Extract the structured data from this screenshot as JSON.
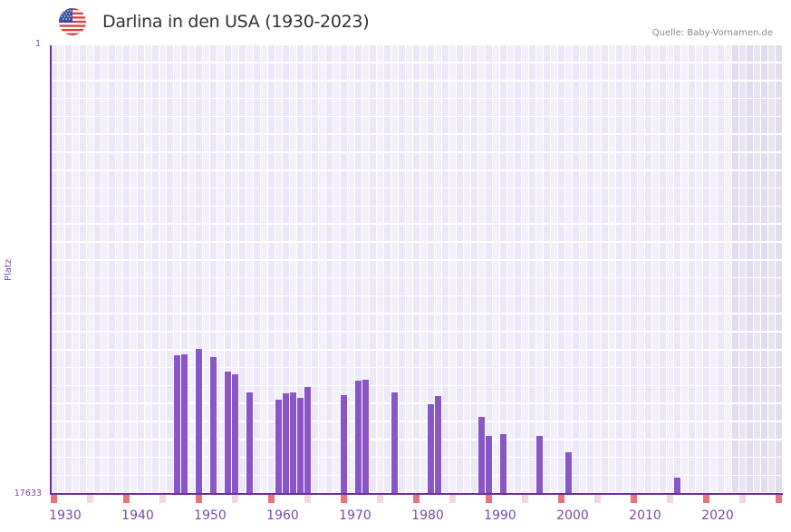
{
  "header": {
    "title": "Darlina in den USA (1930-2023)",
    "source": "Quelle: Baby-Vornamen.de",
    "flag_icon": "us-flag-icon"
  },
  "axes": {
    "y_top_label": "1",
    "y_bottom_label": "17633",
    "y_title": "Platz",
    "x_labels": [
      "1930",
      "1940",
      "1950",
      "1960",
      "1970",
      "1980",
      "1990",
      "2000",
      "2010",
      "2020"
    ]
  },
  "colors": {
    "bar": "#8a55c6",
    "axis": "#6a2d9c",
    "decade_marker": "#e8737d",
    "half_decade_marker": "#f5d6de",
    "grid_a": "#ede8f8",
    "grid_b": "#f3f0fc",
    "shaded_a": "#e2ddec",
    "shaded_b": "#e8e4f0"
  },
  "chart_data": {
    "type": "bar",
    "title": "Darlina in den USA (1930-2023)",
    "xlabel": "",
    "ylabel": "Platz",
    "y_inverted": true,
    "ylim": [
      17633,
      1
    ],
    "x_range": [
      1928,
      2028
    ],
    "shaded_from_year": 2022,
    "grid": true,
    "legend": null,
    "years": [
      1945,
      1946,
      1948,
      1950,
      1952,
      1953,
      1955,
      1959,
      1960,
      1961,
      1962,
      1963,
      1968,
      1970,
      1971,
      1975,
      1980,
      1981,
      1987,
      1988,
      1990,
      1995,
      1999,
      2014
    ],
    "ranks": [
      12180,
      12145,
      11930,
      12250,
      12820,
      12930,
      13640,
      13930,
      13680,
      13640,
      13860,
      13430,
      13750,
      13180,
      13140,
      13640,
      14110,
      13790,
      14600,
      15350,
      15280,
      15350,
      15990,
      16990
    ]
  }
}
